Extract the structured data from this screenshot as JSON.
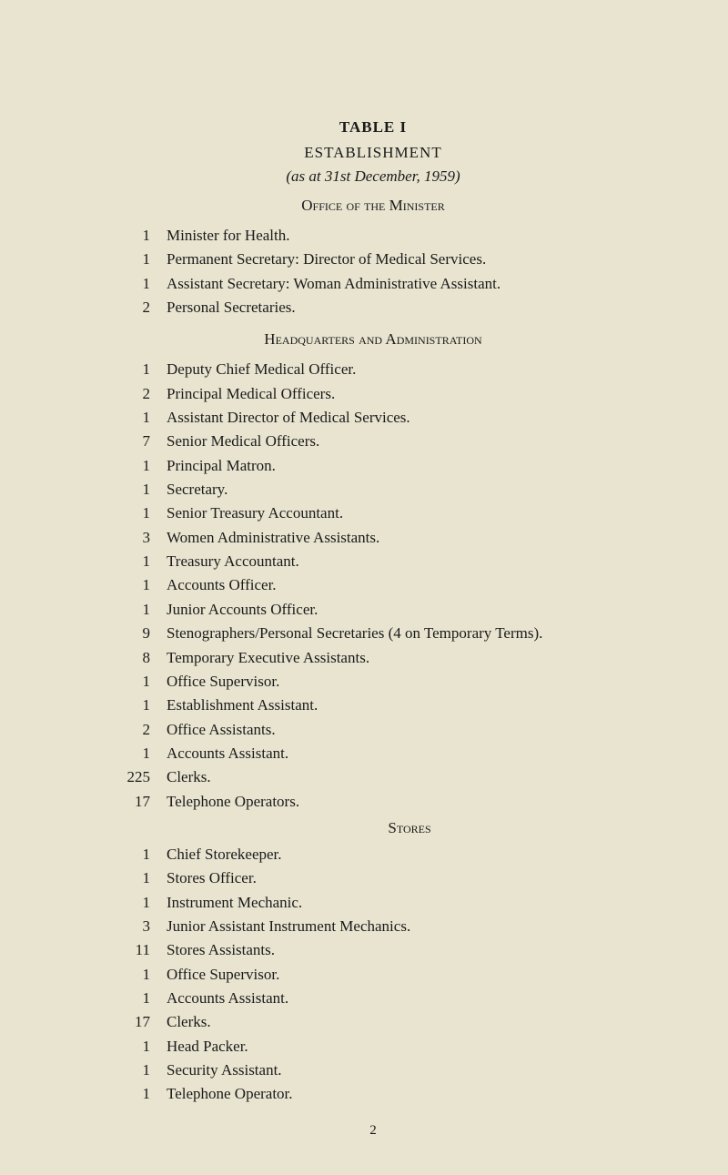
{
  "colors": {
    "background": "#e8e4d0",
    "text": "#1a1a1a"
  },
  "typography": {
    "font_family": "Times New Roman",
    "base_fontsize": 17,
    "line_height": 1.55
  },
  "title": {
    "main": "TABLE I",
    "sub": "ESTABLISHMENT",
    "italic": "(as at 31st December, 1959)"
  },
  "sections": [
    {
      "header": "Office of the Minister",
      "entries": [
        {
          "count": "1",
          "label": "Minister for Health."
        },
        {
          "count": "1",
          "label": "Permanent Secretary: Director of Medical Services."
        },
        {
          "count": "1",
          "label": "Assistant Secretary: Woman Administrative Assistant."
        },
        {
          "count": "2",
          "label": "Personal Secretaries."
        }
      ]
    },
    {
      "header": "Headquarters and Administration",
      "entries": [
        {
          "count": "1",
          "label": "Deputy Chief Medical Officer."
        },
        {
          "count": "2",
          "label": "Principal Medical Officers."
        },
        {
          "count": "1",
          "label": "Assistant Director of Medical Services."
        },
        {
          "count": "7",
          "label": "Senior Medical Officers."
        },
        {
          "count": "1",
          "label": "Principal Matron."
        },
        {
          "count": "1",
          "label": "Secretary."
        },
        {
          "count": "1",
          "label": "Senior Treasury Accountant."
        },
        {
          "count": "3",
          "label": "Women Administrative Assistants."
        },
        {
          "count": "1",
          "label": "Treasury Accountant."
        },
        {
          "count": "1",
          "label": "Accounts Officer."
        },
        {
          "count": "1",
          "label": "Junior Accounts Officer."
        },
        {
          "count": "9",
          "label": "Stenographers/Personal Secretaries (4 on Temporary Terms)."
        },
        {
          "count": "8",
          "label": "Temporary Executive Assistants."
        },
        {
          "count": "1",
          "label": "Office Supervisor."
        },
        {
          "count": "1",
          "label": "Establishment Assistant."
        },
        {
          "count": "2",
          "label": "Office Assistants."
        },
        {
          "count": "1",
          "label": "Accounts Assistant."
        },
        {
          "count": "225",
          "label": "Clerks."
        },
        {
          "count": "17",
          "label": "Telephone Operators."
        }
      ]
    },
    {
      "header": "Stores",
      "entries": [
        {
          "count": "1",
          "label": "Chief Storekeeper."
        },
        {
          "count": "1",
          "label": "Stores Officer."
        },
        {
          "count": "1",
          "label": "Instrument Mechanic."
        },
        {
          "count": "3",
          "label": "Junior Assistant Instrument Mechanics."
        },
        {
          "count": "11",
          "label": "Stores Assistants."
        },
        {
          "count": "1",
          "label": "Office Supervisor."
        },
        {
          "count": "1",
          "label": "Accounts Assistant."
        },
        {
          "count": "17",
          "label": "Clerks."
        },
        {
          "count": "1",
          "label": "Head Packer."
        },
        {
          "count": "1",
          "label": "Security Assistant."
        },
        {
          "count": "1",
          "label": "Telephone Operator."
        }
      ]
    }
  ],
  "page_number": "2"
}
